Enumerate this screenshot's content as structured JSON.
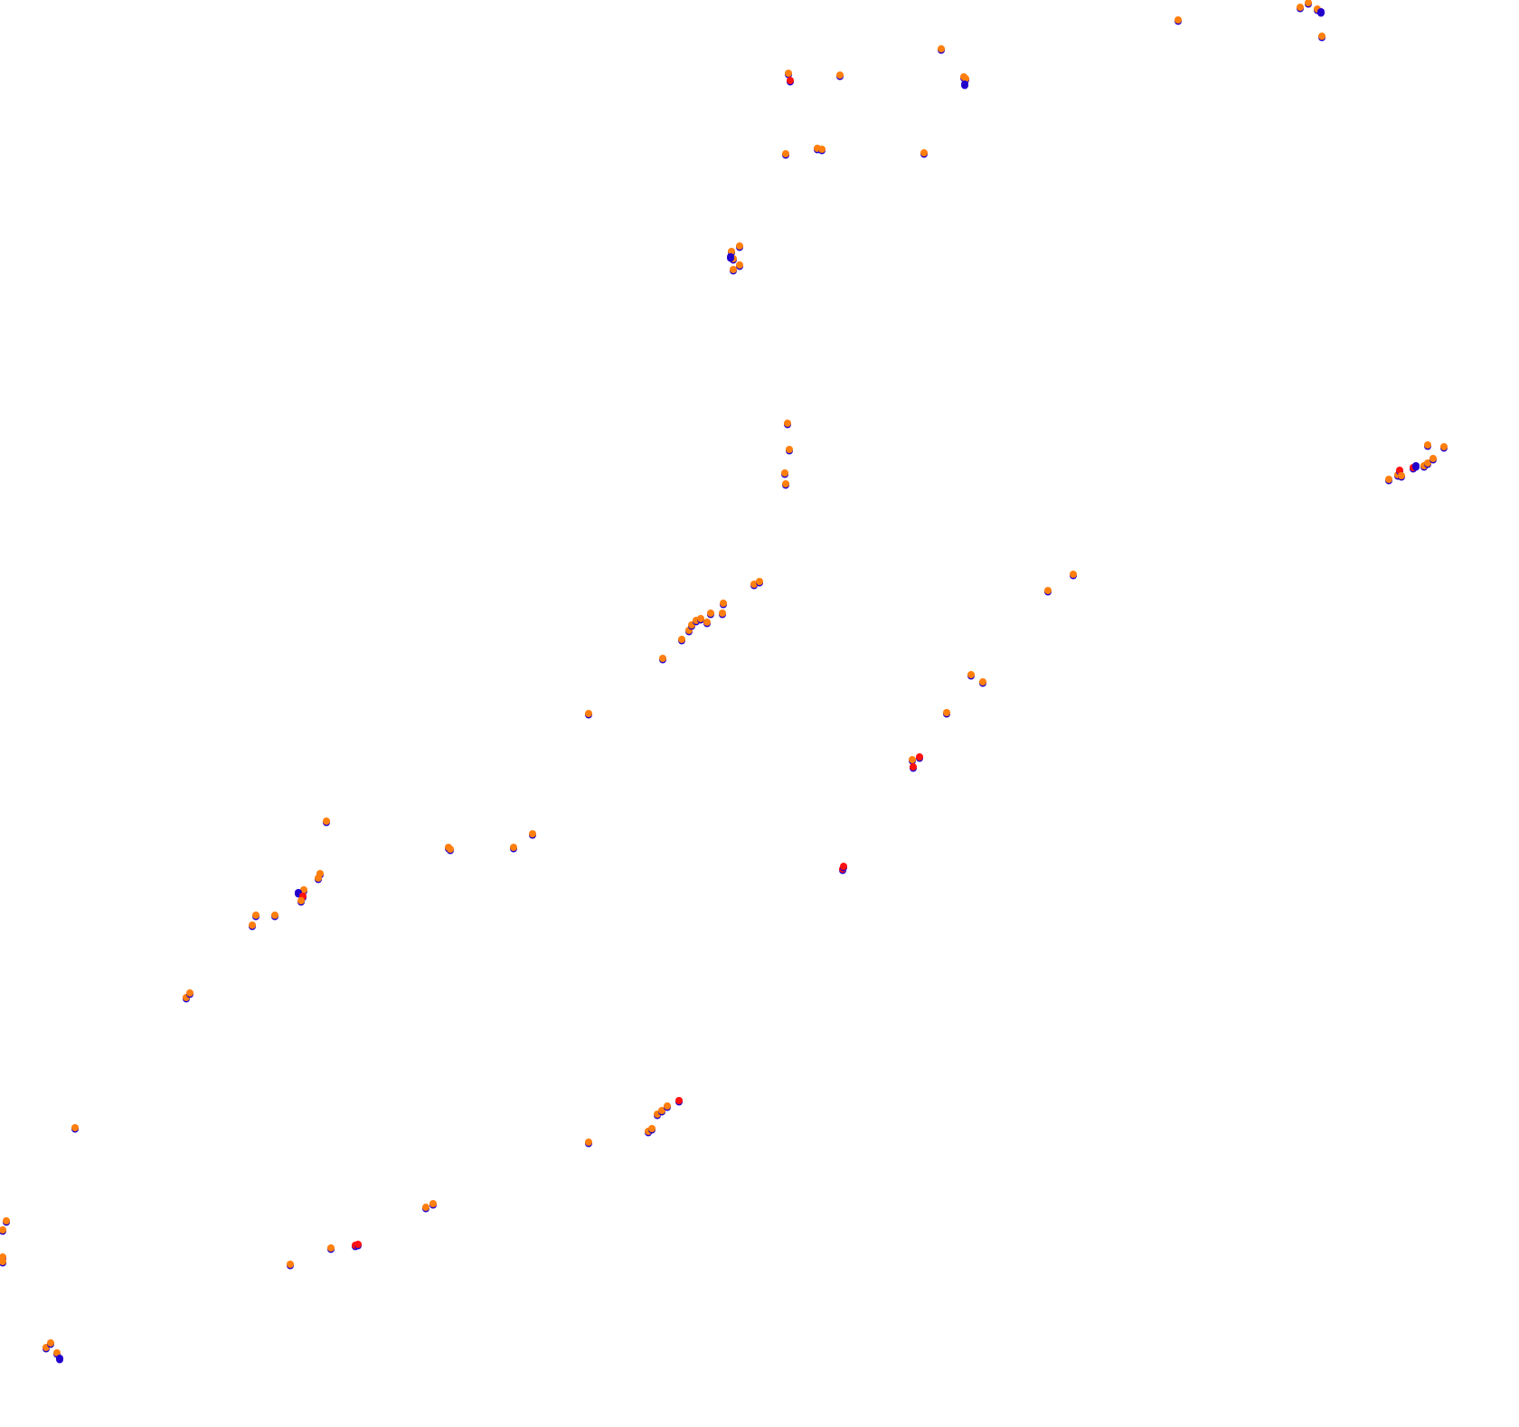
{
  "colors": {
    "background": "#ffffff",
    "blue": "#2200cc",
    "red": "#ff1111",
    "orange": "#ff7f0e"
  },
  "marker_groups": [
    {
      "name": "top-1",
      "points": [
        [
          1303,
          22,
          "o"
        ],
        [
          1438,
          8,
          "o"
        ],
        [
          1447,
          3,
          "o"
        ],
        [
          1457,
          10,
          "o"
        ],
        [
          1461,
          13,
          "b"
        ],
        [
          1462,
          40,
          "o"
        ]
      ]
    },
    {
      "name": "top-2",
      "points": [
        [
          1041,
          54,
          "o"
        ],
        [
          929,
          83,
          "o"
        ],
        [
          872,
          81,
          "o"
        ],
        [
          874,
          89,
          "r"
        ],
        [
          1066,
          85,
          "o"
        ],
        [
          1068,
          87,
          "o"
        ],
        [
          1067,
          93,
          "b"
        ]
      ]
    },
    {
      "name": "top-3",
      "points": [
        [
          869,
          170,
          "o"
        ],
        [
          904,
          164,
          "o"
        ],
        [
          909,
          165,
          "o"
        ],
        [
          1022,
          169,
          "o"
        ]
      ]
    },
    {
      "name": "cluster-a",
      "points": [
        [
          809,
          278,
          "o"
        ],
        [
          811,
          286,
          "o"
        ],
        [
          818,
          272,
          "o"
        ],
        [
          811,
          298,
          "o"
        ],
        [
          818,
          293,
          "o"
        ],
        [
          808,
          284,
          "b"
        ]
      ]
    },
    {
      "name": "vertical",
      "points": [
        [
          871,
          468,
          "o"
        ],
        [
          873,
          497,
          "o"
        ],
        [
          868,
          523,
          "o"
        ],
        [
          869,
          535,
          "o"
        ]
      ]
    },
    {
      "name": "right-cluster",
      "points": [
        [
          1536,
          530,
          "o"
        ],
        [
          1546,
          525,
          "o"
        ],
        [
          1548,
          520,
          "r"
        ],
        [
          1550,
          526,
          "o"
        ],
        [
          1563,
          517,
          "r"
        ],
        [
          1566,
          515,
          "b"
        ],
        [
          1575,
          515,
          "o"
        ],
        [
          1579,
          512,
          "o"
        ],
        [
          1585,
          507,
          "o"
        ],
        [
          1579,
          492,
          "o"
        ],
        [
          1597,
          494,
          "o"
        ]
      ]
    },
    {
      "name": "diagonal-1",
      "points": [
        [
          733,
          728,
          "o"
        ],
        [
          754,
          707,
          "o"
        ],
        [
          762,
          697,
          "o"
        ],
        [
          765,
          691,
          "o"
        ],
        [
          770,
          686,
          "o"
        ],
        [
          775,
          684,
          "o"
        ],
        [
          782,
          688,
          "o"
        ],
        [
          786,
          678,
          "o"
        ],
        [
          799,
          678,
          "o"
        ],
        [
          800,
          667,
          "o"
        ],
        [
          834,
          646,
          "o"
        ],
        [
          840,
          643,
          "o"
        ]
      ]
    },
    {
      "name": "mid-right",
      "points": [
        [
          1159,
          653,
          "o"
        ],
        [
          1187,
          635,
          "o"
        ],
        [
          1074,
          746,
          "o"
        ],
        [
          1087,
          754,
          "o"
        ],
        [
          1047,
          788,
          "o"
        ]
      ]
    },
    {
      "name": "mid-red",
      "points": [
        [
          1009,
          840,
          "o"
        ],
        [
          1010,
          848,
          "r"
        ],
        [
          1017,
          837,
          "r"
        ],
        [
          932,
          961,
          "r"
        ],
        [
          933,
          958,
          "r"
        ]
      ]
    },
    {
      "name": "single-1",
      "points": [
        [
          651,
          789,
          "o"
        ]
      ]
    },
    {
      "name": "left-cluster",
      "points": [
        [
          361,
          908,
          "o"
        ],
        [
          354,
          966,
          "o"
        ],
        [
          352,
          971,
          "o"
        ],
        [
          336,
          984,
          "o"
        ],
        [
          330,
          987,
          "b"
        ],
        [
          335,
          991,
          "r"
        ],
        [
          333,
          996,
          "o"
        ],
        [
          283,
          1012,
          "o"
        ],
        [
          304,
          1012,
          "o"
        ],
        [
          279,
          1023,
          "o"
        ]
      ]
    },
    {
      "name": "mid-left",
      "points": [
        [
          496,
          937,
          "o"
        ],
        [
          498,
          939,
          "o"
        ],
        [
          568,
          937,
          "o"
        ],
        [
          589,
          922,
          "o"
        ]
      ]
    },
    {
      "name": "far-left",
      "points": [
        [
          206,
          1103,
          "o"
        ],
        [
          210,
          1098,
          "o"
        ],
        [
          83,
          1247,
          "o"
        ]
      ]
    },
    {
      "name": "bottom-mid",
      "points": [
        [
          651,
          1263,
          "o"
        ],
        [
          717,
          1251,
          "o"
        ],
        [
          721,
          1248,
          "o"
        ],
        [
          727,
          1232,
          "o"
        ],
        [
          732,
          1228,
          "o"
        ],
        [
          738,
          1223,
          "o"
        ],
        [
          751,
          1217,
          "r"
        ]
      ]
    },
    {
      "name": "bottom-left",
      "points": [
        [
          7,
          1350,
          "o"
        ],
        [
          3,
          1360,
          "o"
        ],
        [
          3,
          1390,
          "o"
        ],
        [
          3,
          1395,
          "o"
        ],
        [
          471,
          1335,
          "o"
        ],
        [
          479,
          1331,
          "o"
        ],
        [
          366,
          1380,
          "o"
        ],
        [
          393,
          1377,
          "r"
        ],
        [
          396,
          1376,
          "r"
        ],
        [
          321,
          1398,
          "o"
        ],
        [
          51,
          1490,
          "o"
        ],
        [
          56,
          1485,
          "o"
        ],
        [
          63,
          1496,
          "o"
        ],
        [
          66,
          1502,
          "b"
        ]
      ]
    }
  ]
}
